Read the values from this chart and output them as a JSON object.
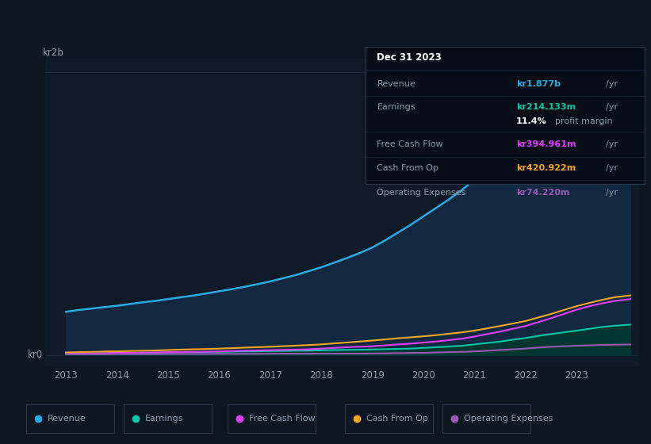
{
  "background_color": "#0e1621",
  "chart_bg": "#0e1a27",
  "title": "Dec 31 2023",
  "years": [
    2013.0,
    2013.25,
    2013.5,
    2013.75,
    2014.0,
    2014.25,
    2014.5,
    2014.75,
    2015.0,
    2015.25,
    2015.5,
    2015.75,
    2016.0,
    2016.25,
    2016.5,
    2016.75,
    2017.0,
    2017.25,
    2017.5,
    2017.75,
    2018.0,
    2018.25,
    2018.5,
    2018.75,
    2019.0,
    2019.25,
    2019.5,
    2019.75,
    2020.0,
    2020.25,
    2020.5,
    2020.75,
    2021.0,
    2021.25,
    2021.5,
    2021.75,
    2022.0,
    2022.25,
    2022.5,
    2022.75,
    2023.0,
    2023.25,
    2023.5,
    2023.75,
    2024.05
  ],
  "revenue": [
    305,
    318,
    328,
    338,
    348,
    360,
    372,
    382,
    395,
    408,
    420,
    435,
    450,
    465,
    482,
    500,
    520,
    542,
    565,
    592,
    620,
    652,
    685,
    720,
    760,
    810,
    865,
    920,
    980,
    1040,
    1100,
    1165,
    1240,
    1330,
    1420,
    1500,
    1575,
    1630,
    1680,
    1720,
    1760,
    1790,
    1820,
    1853,
    1877
  ],
  "earnings": [
    8,
    9,
    10,
    11,
    13,
    14,
    15,
    16,
    18,
    19,
    20,
    21,
    22,
    24,
    25,
    26,
    28,
    29,
    30,
    31,
    33,
    35,
    36,
    37,
    39,
    41,
    43,
    45,
    50,
    55,
    60,
    65,
    75,
    85,
    95,
    108,
    120,
    135,
    148,
    160,
    172,
    185,
    198,
    207,
    214
  ],
  "free_cash_flow": [
    10,
    11,
    12,
    13,
    15,
    16,
    17,
    18,
    20,
    21,
    22,
    23,
    25,
    28,
    30,
    32,
    34,
    36,
    38,
    40,
    45,
    50,
    55,
    58,
    62,
    68,
    75,
    80,
    88,
    95,
    105,
    115,
    130,
    148,
    165,
    185,
    205,
    232,
    260,
    290,
    320,
    345,
    365,
    382,
    395
  ],
  "cash_from_op": [
    18,
    20,
    22,
    24,
    26,
    28,
    30,
    32,
    35,
    38,
    40,
    42,
    45,
    48,
    52,
    55,
    58,
    62,
    66,
    70,
    75,
    82,
    88,
    95,
    102,
    110,
    118,
    125,
    132,
    140,
    150,
    160,
    172,
    188,
    205,
    222,
    240,
    265,
    290,
    318,
    345,
    368,
    390,
    408,
    421
  ],
  "op_expenses": [
    5,
    5,
    5,
    5,
    6,
    6,
    6,
    6,
    7,
    7,
    7,
    7,
    8,
    8,
    8,
    8,
    9,
    9,
    9,
    9,
    10,
    10,
    10,
    10,
    11,
    12,
    13,
    14,
    15,
    18,
    20,
    22,
    25,
    30,
    35,
    40,
    45,
    52,
    58,
    62,
    65,
    68,
    71,
    73,
    74
  ],
  "revenue_color": "#29abe2",
  "revenue_fill": "#122840",
  "earnings_color": "#00c9a7",
  "earnings_fill": "#003830",
  "fcf_color": "#e040fb",
  "cash_op_color": "#f5a623",
  "op_exp_color": "#9b59b6",
  "grid_color": "#1e2d3d",
  "text_color": "#8a9baa",
  "ylim_min": -80,
  "ylim_max": 2100,
  "xlim_min": 2012.6,
  "xlim_max": 2024.2,
  "xtick_pos": [
    2013,
    2014,
    2015,
    2016,
    2017,
    2018,
    2019,
    2020,
    2021,
    2022,
    2023
  ],
  "info_box": {
    "bg_color": "#060d16",
    "border_color": "#2a3a4a",
    "date": "Dec 31 2023",
    "date_color": "#ffffff",
    "revenue_label": "Revenue",
    "revenue_value": "kr1.877b",
    "revenue_color": "#29abe2",
    "earnings_label": "Earnings",
    "earnings_value": "kr214.133m",
    "earnings_color": "#00c9a7",
    "margin_pct": "11.4%",
    "margin_text": "profit margin",
    "fcf_label": "Free Cash Flow",
    "fcf_value": "kr394.961m",
    "fcf_color": "#e040fb",
    "cash_op_label": "Cash From Op",
    "cash_op_value": "kr420.922m",
    "cash_op_color": "#f5a623",
    "op_exp_label": "Operating Expenses",
    "op_exp_value": "kr74.220m",
    "op_exp_color": "#9b59b6",
    "label_color": "#8a9baa",
    "yr_color": "#8a9baa"
  },
  "legend": [
    {
      "label": "Revenue",
      "color": "#29abe2"
    },
    {
      "label": "Earnings",
      "color": "#00c9a7"
    },
    {
      "label": "Free Cash Flow",
      "color": "#e040fb"
    },
    {
      "label": "Cash From Op",
      "color": "#f5a623"
    },
    {
      "label": "Operating Expenses",
      "color": "#9b59b6"
    }
  ]
}
